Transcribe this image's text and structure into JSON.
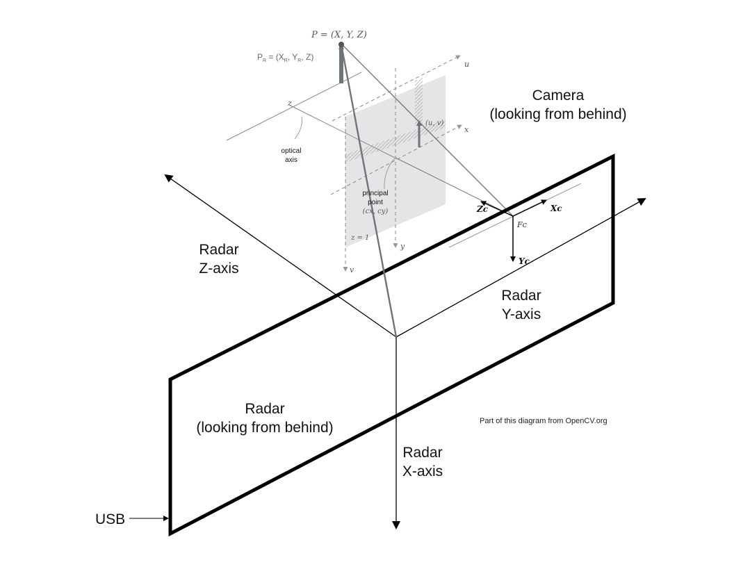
{
  "labels": {
    "point_p": "P = (X, Y, Z)",
    "point_pr": "P",
    "point_pr_sub": "R",
    "point_pr_rest": " = (X",
    "point_pr_sub2": "R",
    "point_pr_rest2": ", Y",
    "point_pr_sub3": "R",
    "point_pr_rest3": ", Z)",
    "camera_line1": "Camera",
    "camera_line2": "(looking from behind)",
    "radar_z_line1": "Radar",
    "radar_z_line2": "Z-axis",
    "radar_y_line1": "Radar",
    "radar_y_line2": "Y-axis",
    "radar_x_line1": "Radar",
    "radar_x_line2": "X-axis",
    "radar_line1": "Radar",
    "radar_line2": "(looking from behind)",
    "usb": "USB",
    "credit": "Part of this diagram from OpenCV.org",
    "optical_axis_line1": "optical",
    "optical_axis_line2": "axis",
    "principal_line1": "principal",
    "principal_line2": "point",
    "principal_line3": "(cx, cy)",
    "uv": "(u, v)",
    "axis_u": "u",
    "axis_x": "x",
    "axis_y": "y",
    "axis_v": "v",
    "axis_z": "z",
    "zc": "Zc",
    "xc": "Xc",
    "yc": "Yc",
    "fc": "Fc",
    "z_eq": "z = 1"
  },
  "colors": {
    "line": "#000000",
    "arrow_gray": "#6f7478",
    "plane_fill": "#d9dcdd",
    "faint_line": "#8a8a8a"
  }
}
